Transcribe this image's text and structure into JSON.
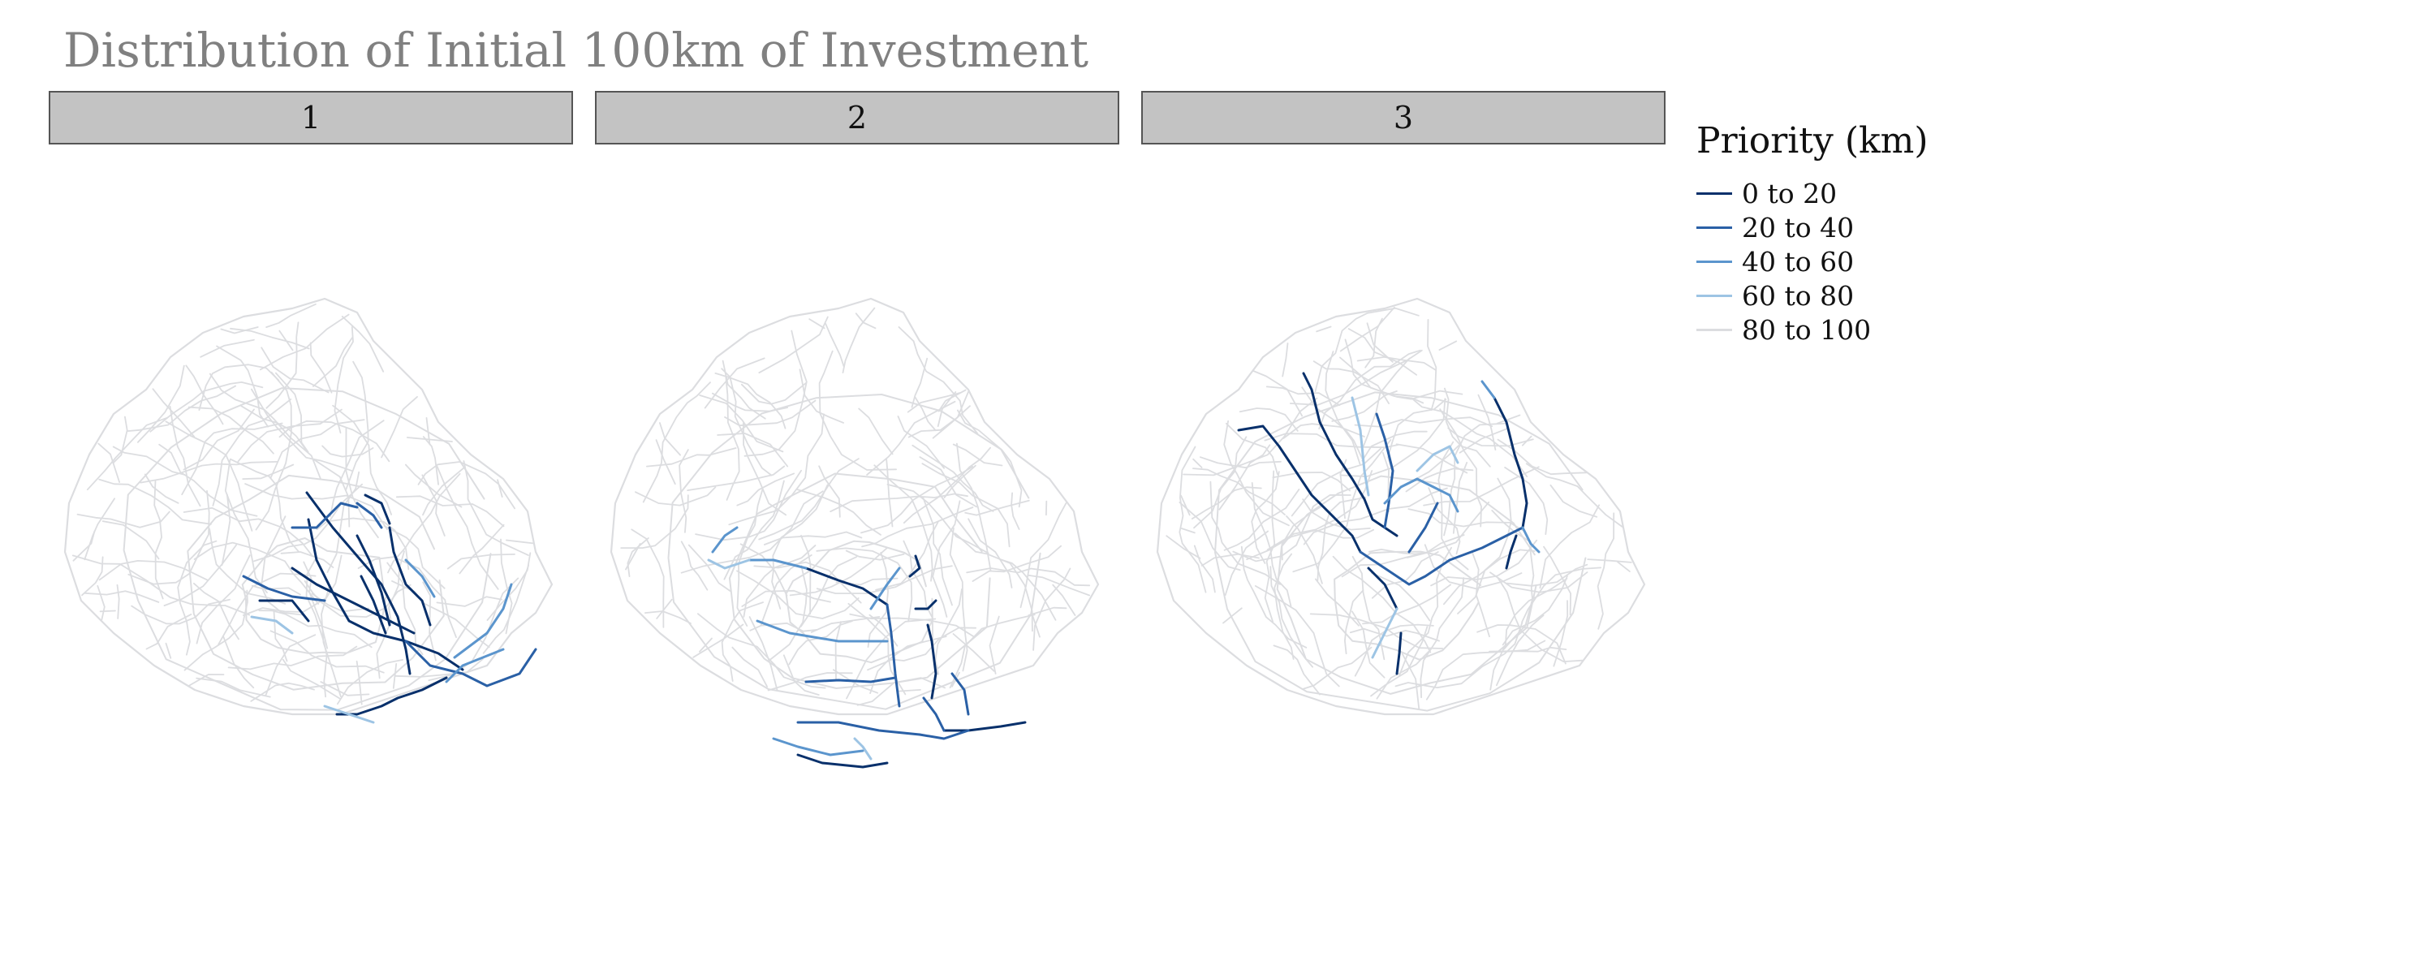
{
  "title": "Distribution of Initial 100km of Investment",
  "panels": [
    {
      "label": "1"
    },
    {
      "label": "2"
    },
    {
      "label": "3"
    }
  ],
  "legend": {
    "title": "Priority (km)",
    "items": [
      {
        "label": "0 to 20",
        "color": "#08306b"
      },
      {
        "label": "20 to 40",
        "color": "#2a60a6"
      },
      {
        "label": "40 to 60",
        "color": "#5b95cd"
      },
      {
        "label": "60 to 80",
        "color": "#9dc4e4"
      },
      {
        "label": "80 to 100",
        "color": "#dcdde0"
      }
    ]
  }
}
